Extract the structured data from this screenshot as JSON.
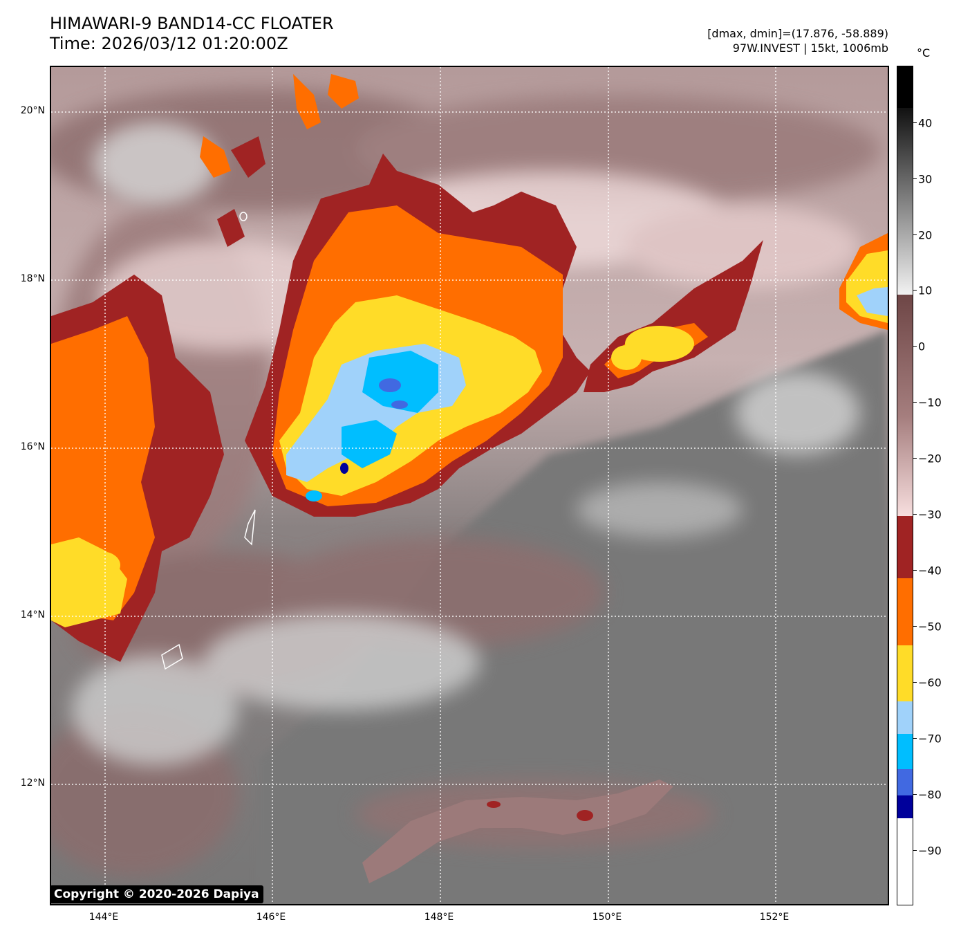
{
  "title": {
    "line1": "HIMAWARI-9 BAND14-CC FLOATER",
    "line2": "Time: 2026/03/12 01:20:00Z"
  },
  "info": {
    "dmax_dmin": "[dmax, dmin]=(17.876, -58.889)",
    "storm": "97W.INVEST | 15kt, 1006mb"
  },
  "colorbar": {
    "unit": "°C",
    "ticks": [
      "40",
      "30",
      "20",
      "10",
      "0",
      "−10",
      "−20",
      "−30",
      "−40",
      "−50",
      "−60",
      "−70",
      "−80",
      "−90"
    ],
    "colors": {
      "black": "#000000",
      "gray_ramp_top": "#111111",
      "gray_ramp_bottom": "#f2f2f2",
      "brown_dark": "#6e4646",
      "brown_mid": "#a57e7e",
      "pink_light": "#f7dede",
      "dark_red": "#a02323",
      "orange": "#ff6e00",
      "yellow": "#ffdc28",
      "light_blue": "#a0d2fa",
      "cyan": "#00beff",
      "royal_blue": "#4169e1",
      "navy": "#00009b",
      "white": "#ffffff"
    }
  },
  "map": {
    "lat_labels": [
      "20°N",
      "18°N",
      "16°N",
      "14°N",
      "12°N"
    ],
    "lon_labels": [
      "144°E",
      "146°E",
      "148°E",
      "150°E",
      "152°E"
    ]
  },
  "copyright": "Copyright © 2020-2026 Dapiya"
}
